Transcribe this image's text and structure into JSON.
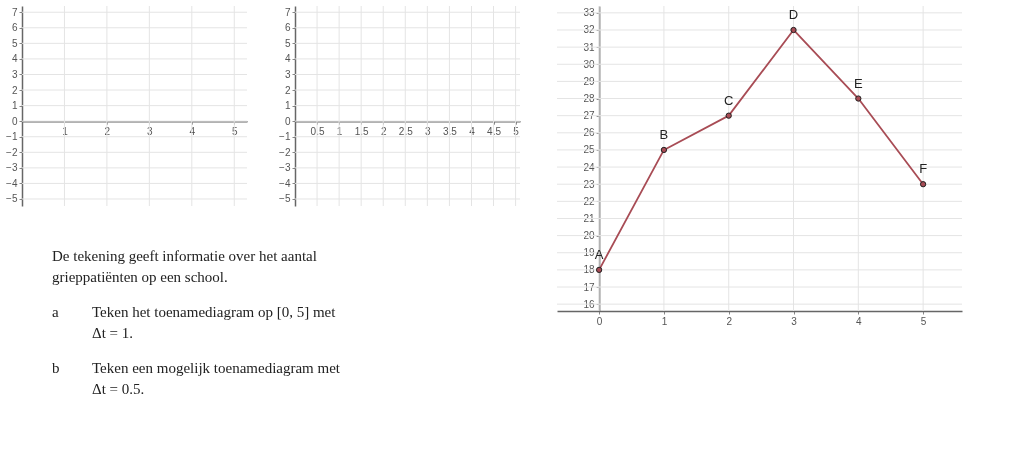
{
  "chart_data": [
    {
      "type": "line",
      "xlim": [
        0,
        5.3
      ],
      "ylim": [
        -5.45,
        7.4
      ],
      "xticks": [
        1,
        2,
        3,
        4,
        5
      ],
      "yticks": [
        -5,
        -4,
        -3,
        -2,
        -1,
        0,
        1,
        2,
        3,
        4,
        5,
        6,
        7
      ],
      "grid": true
    },
    {
      "type": "line",
      "xlim": [
        0,
        5.1
      ],
      "ylim": [
        -5.45,
        7.4
      ],
      "xticks": [
        0.5,
        1,
        1.5,
        2,
        2.5,
        3,
        3.5,
        4,
        4.5,
        5
      ],
      "yticks": [
        -5,
        -4,
        -3,
        -2,
        -1,
        0,
        1,
        2,
        3,
        4,
        5,
        6,
        7
      ],
      "grid": true
    },
    {
      "type": "other",
      "annotations": [
        "De tekening geeft informatie over het aantal grieppatiënten op een school.",
        "a",
        "Teken het toenamediagram op [0, 5] met Δt = 1.",
        "b",
        "Teken een mogelijk toenamediagram met Δt = 0.5."
      ]
    },
    {
      "type": "line",
      "x": [
        0,
        1,
        2,
        3,
        4,
        5
      ],
      "series": [
        {
          "color": "#a84c55",
          "values": [
            18,
            25,
            27,
            32,
            28,
            23
          ]
        }
      ],
      "marker": "circle",
      "xlim": [
        -0.65,
        5.6
      ],
      "ylim": [
        15.6,
        33.4
      ],
      "xticks": [
        0,
        1,
        2,
        3,
        4,
        5
      ],
      "yticks": [
        16,
        17,
        18,
        19,
        20,
        21,
        22,
        23,
        24,
        25,
        26,
        27,
        28,
        29,
        30,
        31,
        32,
        33
      ],
      "grid": true,
      "annotations": [
        {
          "text": "A",
          "x": 0,
          "y": 18
        },
        {
          "text": "B",
          "x": 1,
          "y": 25
        },
        {
          "text": "C",
          "x": 2,
          "y": 27
        },
        {
          "text": "D",
          "x": 3,
          "y": 32
        },
        {
          "text": "E",
          "x": 4,
          "y": 28
        },
        {
          "text": "F",
          "x": 5,
          "y": 23
        }
      ]
    }
  ]
}
